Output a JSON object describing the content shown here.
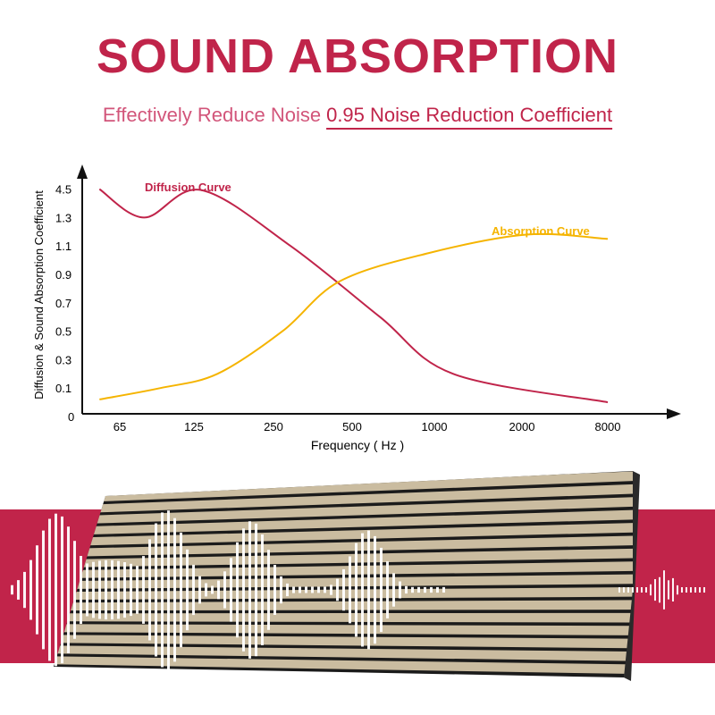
{
  "header": {
    "title": "SOUND ABSORPTION",
    "subtitle_lead": "Effectively Reduce Noise",
    "subtitle_key": "0.95 Noise Reduction Coefficient"
  },
  "colors": {
    "brand": "#c0244a",
    "brand_light": "#d2557a",
    "absorption": "#f5b400",
    "axis": "#111111",
    "band": "#c1244a",
    "slat": "#cabca0",
    "groove": "#1b1b1b",
    "wave": "#ffffff"
  },
  "chart_data": {
    "type": "line",
    "title": "",
    "xlabel": "Frequency ( Hz )",
    "ylabel": "Diffusion & Sound Absorption Coefficient",
    "x_ticks": [
      "65",
      "125",
      "250",
      "500",
      "1000",
      "2000",
      "8000"
    ],
    "y_ticks": [
      "0",
      "0.1",
      "0.3",
      "0.5",
      "0.7",
      "0.9",
      "1.1",
      "1.3",
      "4.5"
    ],
    "series": [
      {
        "name": "Diffusion Curve",
        "color": "#c0244a",
        "points": [
          [
            -0.25,
            4.5
          ],
          [
            0.3,
            1.3
          ],
          [
            1.0,
            4.4
          ],
          [
            2.1,
            1.1
          ],
          [
            3.2,
            0.6
          ],
          [
            4.1,
            0.2
          ],
          [
            6.0,
            0.05
          ]
        ]
      },
      {
        "name": "Absorption Curve",
        "color": "#f5b400",
        "points": [
          [
            -0.25,
            0.06
          ],
          [
            0.5,
            0.1
          ],
          [
            1.2,
            0.2
          ],
          [
            2.0,
            0.5
          ],
          [
            2.7,
            0.85
          ],
          [
            3.8,
            1.05
          ],
          [
            5.0,
            1.18
          ],
          [
            6.0,
            1.15
          ]
        ]
      }
    ],
    "grid": false,
    "legend": "inline labels near curves"
  }
}
